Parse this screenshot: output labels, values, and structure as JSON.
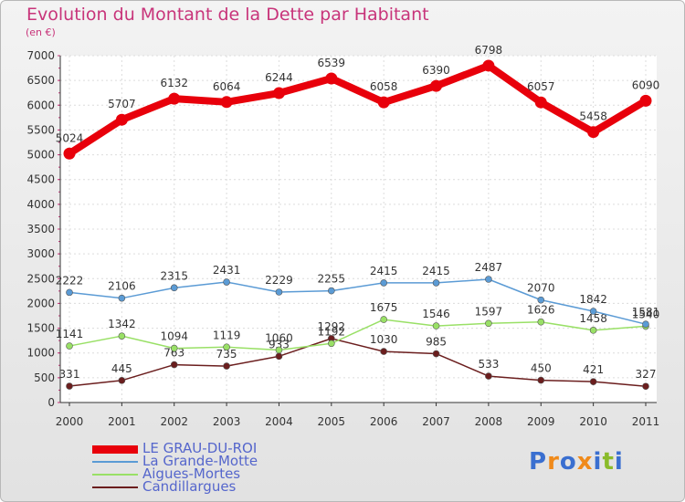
{
  "title": "Evolution du Montant de la Dette par Habitant",
  "unit_label": "(en €)",
  "logo": {
    "letters": [
      "P",
      "r",
      "o",
      "x",
      "i",
      "t",
      "i"
    ],
    "colors": [
      "#3a6fd0",
      "#f08a1a",
      "#3a6fd0",
      "#f08a1a",
      "#3a6fd0",
      "#8abb2a",
      "#3a6fd0"
    ]
  },
  "chart_data": {
    "type": "line",
    "title": "Evolution du Montant de la Dette par Habitant",
    "ylabel": "(en €)",
    "x": [
      "2000",
      "2001",
      "2002",
      "2003",
      "2004",
      "2005",
      "2006",
      "2007",
      "2008",
      "2009",
      "2010",
      "2011"
    ],
    "ylim": [
      0,
      7000
    ],
    "yticks": [
      "0",
      "500",
      "1000",
      "1500",
      "2000",
      "2500",
      "3000",
      "3500",
      "4000",
      "4500",
      "5000",
      "5500",
      "6000",
      "6500",
      "7000"
    ],
    "grid": true,
    "legend_position": "bottom-left",
    "series": [
      {
        "name": "LE GRAU-DU-ROI",
        "color": "#e8000b",
        "values": [
          5024,
          5707,
          6132,
          6064,
          6244,
          6539,
          6058,
          6390,
          6798,
          6057,
          5458,
          6090
        ],
        "labels": [
          "5024",
          "5707",
          "6132",
          "6064",
          "6244",
          "6539",
          "6058",
          "6390",
          "6798",
          "6057",
          "5458",
          "6090"
        ]
      },
      {
        "name": "La Grande-Motte",
        "color": "#5b9bd5",
        "values": [
          2222,
          2106,
          2315,
          2431,
          2229,
          2255,
          2415,
          2415,
          2487,
          2070,
          1842,
          1581
        ],
        "labels": [
          "2222",
          "2106",
          "2315",
          "2431",
          "2229",
          "2255",
          "2415",
          "2415",
          "2487",
          "2070",
          "1842",
          "1581"
        ]
      },
      {
        "name": "Aigues-Mortes",
        "color": "#99e066",
        "values": [
          1141,
          1342,
          1094,
          1119,
          1060,
          1192,
          1675,
          1546,
          1597,
          1626,
          1458,
          1540
        ],
        "labels": [
          "1141",
          "1342",
          "1094",
          "1119",
          "1060",
          "1192",
          "1675",
          "1546",
          "1597",
          "1626",
          "1458",
          "1540"
        ]
      },
      {
        "name": "Candillargues",
        "color": "#6b1e1e",
        "values": [
          331,
          445,
          763,
          735,
          933,
          1292,
          1030,
          985,
          533,
          450,
          421,
          327
        ],
        "labels": [
          "331",
          "445",
          "763",
          "735",
          "933",
          "1292",
          "1030",
          "985",
          "533",
          "450",
          "421",
          "327"
        ]
      }
    ]
  }
}
